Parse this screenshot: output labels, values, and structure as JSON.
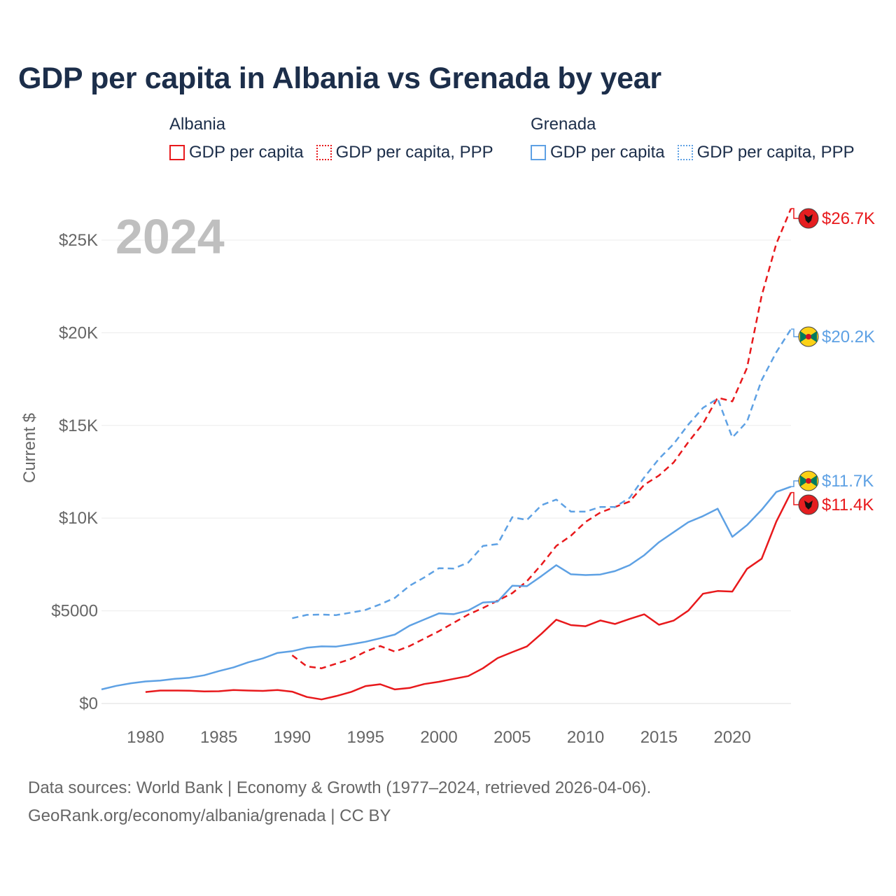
{
  "title": "GDP per capita in Albania vs Grenada by year",
  "legend": {
    "albania": {
      "name": "Albania",
      "gdp": "GDP per capita",
      "ppp": "GDP per capita, PPP"
    },
    "grenada": {
      "name": "Grenada",
      "gdp": "GDP per capita",
      "ppp": "GDP per capita, PPP"
    }
  },
  "colors": {
    "albania": "#e8191c",
    "grenada": "#5ea1e4",
    "axis_text": "#666666",
    "year_label": "#bfbfbf"
  },
  "year_overlay": "2024",
  "chart_data": {
    "type": "line",
    "title": "GDP per capita in Albania vs Grenada by year",
    "xlabel": "",
    "ylabel": "Current $",
    "xlim": [
      1977,
      2024
    ],
    "ylim": [
      0,
      27000
    ],
    "x_ticks": [
      1980,
      1985,
      1990,
      1995,
      2000,
      2005,
      2010,
      2015,
      2020
    ],
    "y_ticks": [
      0,
      5000,
      10000,
      15000,
      20000,
      25000
    ],
    "y_tick_labels": [
      "$0",
      "$5000",
      "$10K",
      "$15K",
      "$20K",
      "$25K"
    ],
    "grid": true,
    "series": [
      {
        "name": "Albania GDP per capita",
        "country": "albania",
        "style": "solid",
        "end_label": "$11.4K",
        "points": [
          [
            1980,
            620
          ],
          [
            1981,
            700
          ],
          [
            1982,
            700
          ],
          [
            1983,
            690
          ],
          [
            1984,
            650
          ],
          [
            1985,
            660
          ],
          [
            1986,
            730
          ],
          [
            1987,
            700
          ],
          [
            1988,
            680
          ],
          [
            1989,
            730
          ],
          [
            1990,
            640
          ],
          [
            1991,
            350
          ],
          [
            1992,
            220
          ],
          [
            1993,
            400
          ],
          [
            1994,
            620
          ],
          [
            1995,
            940
          ],
          [
            1996,
            1040
          ],
          [
            1997,
            760
          ],
          [
            1998,
            840
          ],
          [
            1999,
            1050
          ],
          [
            2000,
            1170
          ],
          [
            2001,
            1330
          ],
          [
            2002,
            1480
          ],
          [
            2003,
            1900
          ],
          [
            2004,
            2450
          ],
          [
            2005,
            2770
          ],
          [
            2006,
            3080
          ],
          [
            2007,
            3770
          ],
          [
            2008,
            4520
          ],
          [
            2009,
            4230
          ],
          [
            2010,
            4170
          ],
          [
            2011,
            4480
          ],
          [
            2012,
            4290
          ],
          [
            2013,
            4560
          ],
          [
            2014,
            4810
          ],
          [
            2015,
            4250
          ],
          [
            2016,
            4470
          ],
          [
            2017,
            5010
          ],
          [
            2018,
            5920
          ],
          [
            2019,
            6070
          ],
          [
            2020,
            6040
          ],
          [
            2021,
            7260
          ],
          [
            2022,
            7810
          ],
          [
            2023,
            9810
          ],
          [
            2024,
            11380
          ]
        ]
      },
      {
        "name": "Albania GDP per capita, PPP",
        "country": "albania",
        "style": "dashed",
        "end_label": "$26.7K",
        "points": [
          [
            1990,
            2600
          ],
          [
            1991,
            2000
          ],
          [
            1992,
            1900
          ],
          [
            1993,
            2150
          ],
          [
            1994,
            2400
          ],
          [
            1995,
            2800
          ],
          [
            1996,
            3100
          ],
          [
            1997,
            2800
          ],
          [
            1998,
            3100
          ],
          [
            1999,
            3500
          ],
          [
            2000,
            3900
          ],
          [
            2001,
            4350
          ],
          [
            2002,
            4800
          ],
          [
            2003,
            5150
          ],
          [
            2004,
            5550
          ],
          [
            2005,
            5950
          ],
          [
            2006,
            6600
          ],
          [
            2007,
            7500
          ],
          [
            2008,
            8500
          ],
          [
            2009,
            9050
          ],
          [
            2010,
            9800
          ],
          [
            2011,
            10300
          ],
          [
            2012,
            10600
          ],
          [
            2013,
            10900
          ],
          [
            2014,
            11800
          ],
          [
            2015,
            12300
          ],
          [
            2016,
            13000
          ],
          [
            2017,
            14100
          ],
          [
            2018,
            15100
          ],
          [
            2019,
            16500
          ],
          [
            2020,
            16300
          ],
          [
            2021,
            18100
          ],
          [
            2022,
            22000
          ],
          [
            2023,
            24800
          ],
          [
            2024,
            26700
          ]
        ]
      },
      {
        "name": "Grenada GDP per capita",
        "country": "grenada",
        "style": "solid",
        "end_label": "$11.7K",
        "points": [
          [
            1977,
            760
          ],
          [
            1978,
            950
          ],
          [
            1979,
            1090
          ],
          [
            1980,
            1190
          ],
          [
            1981,
            1240
          ],
          [
            1982,
            1330
          ],
          [
            1983,
            1390
          ],
          [
            1984,
            1520
          ],
          [
            1985,
            1750
          ],
          [
            1986,
            1950
          ],
          [
            1987,
            2220
          ],
          [
            1988,
            2430
          ],
          [
            1989,
            2730
          ],
          [
            1990,
            2820
          ],
          [
            1991,
            3010
          ],
          [
            1992,
            3080
          ],
          [
            1993,
            3070
          ],
          [
            1994,
            3190
          ],
          [
            1995,
            3330
          ],
          [
            1996,
            3520
          ],
          [
            1997,
            3720
          ],
          [
            1998,
            4200
          ],
          [
            1999,
            4530
          ],
          [
            2000,
            4860
          ],
          [
            2001,
            4820
          ],
          [
            2002,
            5020
          ],
          [
            2003,
            5450
          ],
          [
            2004,
            5500
          ],
          [
            2005,
            6350
          ],
          [
            2006,
            6330
          ],
          [
            2007,
            6880
          ],
          [
            2008,
            7460
          ],
          [
            2009,
            6970
          ],
          [
            2010,
            6930
          ],
          [
            2011,
            6960
          ],
          [
            2012,
            7140
          ],
          [
            2013,
            7460
          ],
          [
            2014,
            8000
          ],
          [
            2015,
            8700
          ],
          [
            2016,
            9240
          ],
          [
            2017,
            9780
          ],
          [
            2018,
            10110
          ],
          [
            2019,
            10510
          ],
          [
            2020,
            8990
          ],
          [
            2021,
            9620
          ],
          [
            2022,
            10450
          ],
          [
            2023,
            11410
          ],
          [
            2024,
            11700
          ]
        ]
      },
      {
        "name": "Grenada GDP per capita, PPP",
        "country": "grenada",
        "style": "dashed",
        "end_label": "$20.2K",
        "points": [
          [
            1990,
            4600
          ],
          [
            1991,
            4780
          ],
          [
            1992,
            4800
          ],
          [
            1993,
            4770
          ],
          [
            1994,
            4900
          ],
          [
            1995,
            5050
          ],
          [
            1996,
            5350
          ],
          [
            1997,
            5700
          ],
          [
            1998,
            6350
          ],
          [
            1999,
            6800
          ],
          [
            2000,
            7300
          ],
          [
            2001,
            7280
          ],
          [
            2002,
            7600
          ],
          [
            2003,
            8500
          ],
          [
            2004,
            8600
          ],
          [
            2005,
            10050
          ],
          [
            2006,
            9900
          ],
          [
            2007,
            10700
          ],
          [
            2008,
            11000
          ],
          [
            2009,
            10350
          ],
          [
            2010,
            10350
          ],
          [
            2011,
            10600
          ],
          [
            2012,
            10600
          ],
          [
            2013,
            11100
          ],
          [
            2014,
            12200
          ],
          [
            2015,
            13200
          ],
          [
            2016,
            14000
          ],
          [
            2017,
            15050
          ],
          [
            2018,
            15950
          ],
          [
            2019,
            16450
          ],
          [
            2020,
            14350
          ],
          [
            2021,
            15200
          ],
          [
            2022,
            17450
          ],
          [
            2023,
            18950
          ],
          [
            2024,
            20200
          ]
        ]
      }
    ]
  },
  "footer": {
    "line1": "Data sources: World Bank | Economy & Growth (1977–2024, retrieved 2026-04-06).",
    "line2": "GeoRank.org/economy/albania/grenada | CC BY"
  }
}
